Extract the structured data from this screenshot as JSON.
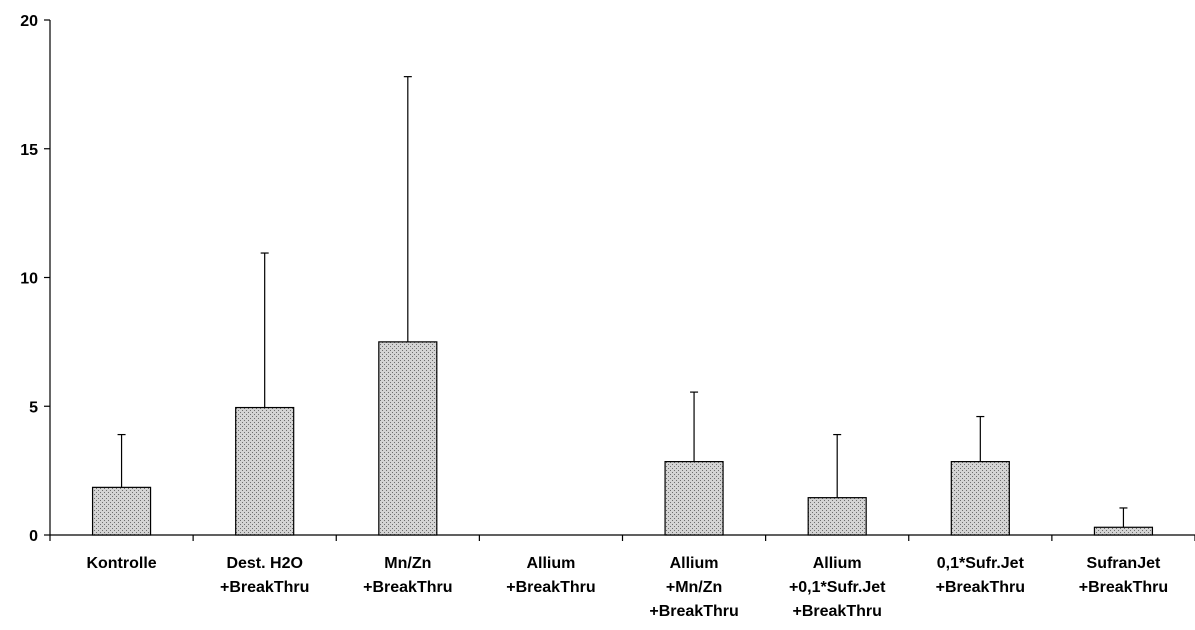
{
  "chart_data": {
    "type": "bar",
    "title": "",
    "xlabel": "",
    "ylabel": "",
    "ylim": [
      0,
      20
    ],
    "yticks": [
      0,
      5,
      10,
      15,
      20
    ],
    "grid": false,
    "legend": "none",
    "bar_fill": "#c8c8c8",
    "bar_stroke": "#000000",
    "categories": [
      [
        "Kontrolle"
      ],
      [
        "Dest. H2O",
        "+BreakThru"
      ],
      [
        "Mn/Zn",
        "+BreakThru"
      ],
      [
        "Allium",
        "+BreakThru"
      ],
      [
        "Allium",
        "+Mn/Zn",
        "+BreakThru"
      ],
      [
        "Allium",
        "+0,1*Sufr.Jet",
        "+BreakThru"
      ],
      [
        "0,1*Sufr.Jet",
        "+BreakThru"
      ],
      [
        "SufranJet",
        "+BreakThru"
      ]
    ],
    "values": [
      1.85,
      4.95,
      7.5,
      0.0,
      2.85,
      1.45,
      2.85,
      0.3
    ],
    "error_upper": [
      3.9,
      10.95,
      17.8,
      0.0,
      5.55,
      3.9,
      4.6,
      1.05
    ]
  }
}
